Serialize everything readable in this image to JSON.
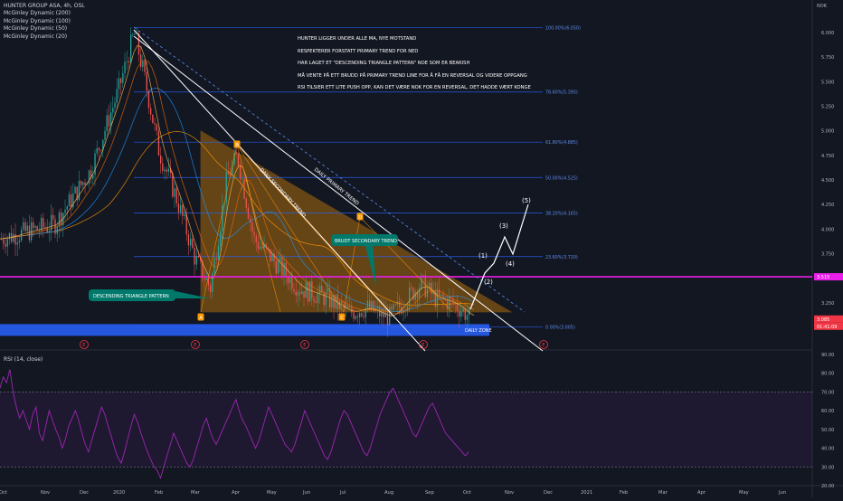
{
  "header": {
    "symbol_line": "HUNTER GROUP ASA, 4h, OSL",
    "indicators": [
      "McGinley Dynamic (200)",
      "McGinley Dynamic (100)",
      "McGinley Dynamic (50)",
      "McGinley Dynamic (20)"
    ],
    "currency": "NOK"
  },
  "annotations": [
    "HUNTER LIGGER UNDER ALLE MA, NYE MOTSTAND",
    "RESPEKTERER FORSTATT PRIMARY TREND FOR NED",
    "HAR LAGET ET \"DESCENDING TRIANGLE PATTERN\" NOE SOM ER BEARISH",
    "MÅ VENTE PÅ ETT BRUDD PÅ PRIMARY TREND LINE FOR Å FÅ EN REVERSAL OG VIDERE OPPGANG",
    "RSI TILSIER ETT LITE PUSH OPP, KAN DET VÆRE NOK FOR EN REVERSAL, DET HADDE VÆRT KONGE"
  ],
  "labels": {
    "daily_primary": "DAILY PRIMARY TREND",
    "daily_secondary": "DAILY SECONDARY TREND",
    "brudt": "BRUDT SECONDARY TREND",
    "triangle": "DESCENDING TRIANGLE PATTERN",
    "daily_zone": "DAILY ZONE",
    "rsi_legend": "RSI (14, close)"
  },
  "chart_data": [
    {
      "type": "line",
      "fib_levels": [
        {
          "label": "100.00%(6.050)",
          "value": 6.05
        },
        {
          "label": "78.60%(5.395)",
          "value": 5.395
        },
        {
          "label": "61.80%(4.885)",
          "value": 4.885
        },
        {
          "label": "50.00%(4.525)",
          "value": 4.525
        },
        {
          "label": "38.20%(4.165)",
          "value": 4.165
        },
        {
          "label": "23.60%(3.720)",
          "value": 3.72
        },
        {
          "label": "0.00%(3.005)",
          "value": 3.005
        }
      ],
      "y_ticks": [
        "6.000",
        "5.750",
        "5.500",
        "5.250",
        "5.000",
        "4.750",
        "4.500",
        "4.250",
        "4.000",
        "3.750",
        "3.250",
        "3.000"
      ],
      "x_ticks": [
        "Oct",
        "Nov",
        "Dec",
        "2020",
        "Feb",
        "Mar",
        "Apr",
        "May",
        "Jun",
        "Jul",
        "Aug",
        "Sep",
        "Oct",
        "Nov",
        "Dec",
        "2021",
        "Feb",
        "Mar",
        "Apr",
        "May",
        "Jun"
      ],
      "price_tags": [
        {
          "label": "3.515",
          "value": 3.515,
          "color": "#e91ee8"
        },
        {
          "label": "3.085",
          "value": 3.085,
          "color": "#f23645"
        },
        {
          "label": "01:41:09",
          "value": 3.0,
          "color": "#f23645"
        }
      ],
      "horizontal_line": {
        "value": 3.515,
        "color": "#e91ee8"
      },
      "wave_labels": [
        "(1)",
        "(2)",
        "(3)",
        "(4)",
        "(5)"
      ],
      "point_labels": [
        "B",
        "D",
        "A",
        "C"
      ],
      "event_markers": [
        "E",
        "E",
        "E",
        "E",
        "E"
      ],
      "colors": {
        "fib": "#2962ff",
        "triangle": "#ff9800",
        "zone": "#2962ff",
        "rsi": "#9c27b0",
        "magenta": "#e91ee8",
        "up": "#26a69a",
        "down": "#ef5350"
      }
    },
    {
      "type": "line",
      "title": "RSI (14, close)",
      "y_ticks": [
        "90.00",
        "80.00",
        "70.00",
        "60.00",
        "50.00",
        "40.00",
        "30.00",
        "20.00"
      ],
      "ylim": [
        20,
        90
      ],
      "bands": [
        30,
        70
      ],
      "values": [
        72,
        78,
        75,
        82,
        70,
        62,
        56,
        60,
        55,
        50,
        58,
        62,
        48,
        44,
        52,
        60,
        55,
        50,
        46,
        40,
        45,
        52,
        56,
        60,
        55,
        48,
        42,
        38,
        44,
        50,
        56,
        62,
        58,
        52,
        46,
        40,
        35,
        32,
        38,
        45,
        52,
        58,
        54,
        48,
        43,
        38,
        34,
        30,
        28,
        24,
        30,
        36,
        42,
        48,
        44,
        40,
        36,
        32,
        30,
        34,
        40,
        46,
        52,
        56,
        50,
        45,
        42,
        46,
        50,
        54,
        58,
        62,
        66,
        60,
        55,
        52,
        48,
        44,
        40,
        44,
        50,
        56,
        62,
        58,
        54,
        50,
        46,
        42,
        40,
        38,
        42,
        48,
        54,
        60,
        56,
        52,
        48,
        44,
        40,
        36,
        34,
        38,
        44,
        50,
        56,
        60,
        58,
        54,
        50,
        46,
        42,
        38,
        36,
        40,
        46,
        52,
        58,
        62,
        66,
        70,
        72,
        68,
        64,
        60,
        56,
        52,
        48,
        46,
        50,
        54,
        58,
        62,
        64,
        60,
        56,
        52,
        48,
        46,
        44,
        42,
        40,
        38,
        36,
        38
      ]
    }
  ]
}
